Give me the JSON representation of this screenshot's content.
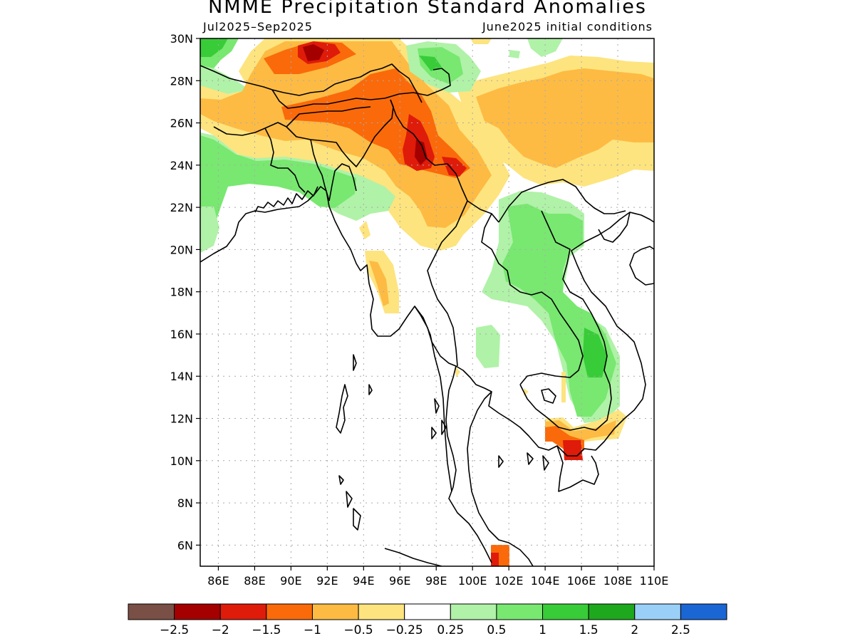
{
  "map": {
    "title": "NMME Precipitation Standard Anomalies",
    "period": "Jul2025–Sep2025",
    "initial_conditions": "June2025 initial conditions"
  },
  "axes": {
    "lat_labels": [
      "30N",
      "28N",
      "26N",
      "24N",
      "22N",
      "20N",
      "18N",
      "16N",
      "14N",
      "12N",
      "10N",
      "8N",
      "6N"
    ],
    "lon_labels": [
      "86E",
      "88E",
      "90E",
      "92E",
      "94E",
      "96E",
      "98E",
      "100E",
      "102E",
      "104E",
      "106E",
      "108E",
      "110E"
    ],
    "lat_range": [
      5,
      30
    ],
    "lon_range": [
      85,
      110
    ],
    "grid": "dotted"
  },
  "colorbar": {
    "colors": [
      "#7a4f45",
      "#a40000",
      "#df1b0a",
      "#fa6a0a",
      "#fdbb44",
      "#fde47e",
      "#ffffff",
      "#b0f2a8",
      "#78e870",
      "#38cc38",
      "#1ea81e",
      "#9ad0f8",
      "#1a66d4"
    ],
    "labels": [
      "−2.5",
      "−2",
      "−1.5",
      "−1",
      "−0.5",
      "−0.25",
      "0.25",
      "0.5",
      "1",
      "1.5",
      "2",
      "2.5"
    ]
  }
}
